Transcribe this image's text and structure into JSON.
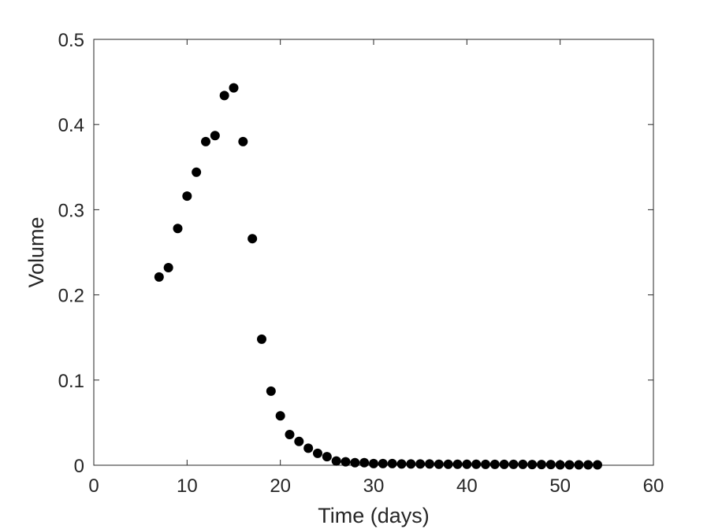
{
  "chart_data": {
    "type": "scatter",
    "title": "",
    "xlabel": "Time (days)",
    "ylabel": "Volume",
    "xlim": [
      0,
      60
    ],
    "ylim": [
      0,
      0.5
    ],
    "xticks": [
      0,
      10,
      20,
      30,
      40,
      50,
      60
    ],
    "yticks": [
      0,
      0.1,
      0.2,
      0.3,
      0.4,
      0.5
    ],
    "xtick_labels": [
      "0",
      "10",
      "20",
      "30",
      "40",
      "50",
      "60"
    ],
    "ytick_labels": [
      "0",
      "0.1",
      "0.2",
      "0.3",
      "0.4",
      "0.5"
    ],
    "grid": false,
    "marker_color": "#000000",
    "axis_color": "#262626",
    "series": [
      {
        "x": [
          7,
          8,
          9,
          10,
          11,
          12,
          13,
          14,
          15,
          16,
          17,
          18,
          19,
          20,
          21,
          22,
          23,
          24,
          25,
          26,
          27,
          28,
          29,
          30,
          31,
          32,
          33,
          34,
          35,
          36,
          37,
          38,
          39,
          40,
          41,
          42,
          43,
          44,
          45,
          46,
          47,
          48,
          49,
          50,
          51,
          52,
          53,
          54
        ],
        "y": [
          0.221,
          0.232,
          0.278,
          0.316,
          0.344,
          0.38,
          0.387,
          0.434,
          0.443,
          0.38,
          0.266,
          0.148,
          0.087,
          0.058,
          0.036,
          0.028,
          0.02,
          0.014,
          0.01,
          0.005,
          0.004,
          0.003,
          0.003,
          0.002,
          0.002,
          0.002,
          0.0015,
          0.0015,
          0.0015,
          0.0015,
          0.0012,
          0.0012,
          0.0012,
          0.0012,
          0.0012,
          0.001,
          0.001,
          0.001,
          0.001,
          0.001,
          0.0008,
          0.0008,
          0.0008,
          0.0005,
          0.0005,
          0.0005,
          0.0005,
          0.0005
        ]
      }
    ]
  }
}
